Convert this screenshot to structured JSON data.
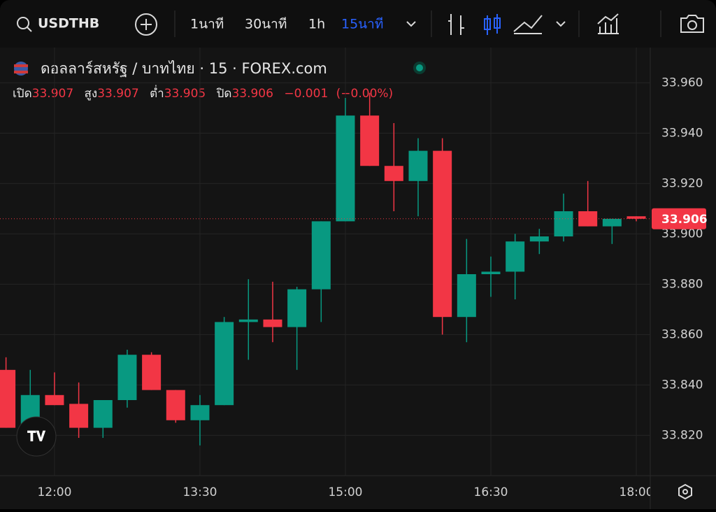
{
  "toolbar": {
    "symbol": "USDTHB",
    "intervals": [
      "1นาที",
      "30นาที",
      "1h",
      "15นาที"
    ],
    "active_interval": 3
  },
  "chart_data": {
    "type": "candlestick",
    "title": "ดอลลาร์สหรัฐ / บาทไทย · 15 · FOREX.com",
    "legend": {
      "open_label": "เปิด",
      "open": 33.907,
      "high_label": "สูง",
      "high": 33.907,
      "low_label": "ต่ำ",
      "low": 33.905,
      "close_label": "ปิด",
      "close": 33.906,
      "change": {
        "value": -0.001,
        "label": "−0.001"
      },
      "change_pct": {
        "value": -0.0,
        "label": "(−0.00%)"
      }
    },
    "categories": [
      null,
      null,
      "12:00",
      null,
      null,
      null,
      null,
      null,
      "13:30",
      null,
      null,
      null,
      null,
      null,
      "15:00",
      null,
      null,
      null,
      null,
      null,
      "16:30",
      null,
      null,
      null,
      null,
      null,
      "18:00"
    ],
    "series": [
      {
        "name": "open",
        "values": [
          33.846,
          33.823,
          33.836,
          33.8325,
          33.823,
          33.834,
          33.852,
          33.838,
          33.826,
          33.832,
          33.865,
          33.866,
          33.863,
          33.878,
          33.905,
          33.947,
          33.927,
          33.921,
          33.933,
          33.867,
          33.884,
          33.885,
          33.897,
          33.899,
          33.909,
          33.903,
          33.907
        ]
      },
      {
        "name": "high",
        "values": [
          33.851,
          33.846,
          33.845,
          33.841,
          33.834,
          33.854,
          33.853,
          33.838,
          33.836,
          33.867,
          33.882,
          33.881,
          33.879,
          33.905,
          33.954,
          33.956,
          33.944,
          33.938,
          33.938,
          33.898,
          33.891,
          33.9,
          33.902,
          33.916,
          33.921,
          33.906,
          33.907
        ]
      },
      {
        "name": "low",
        "values": [
          33.823,
          33.82,
          33.832,
          33.819,
          33.819,
          33.831,
          33.838,
          33.825,
          33.816,
          33.832,
          33.85,
          33.857,
          33.846,
          33.865,
          33.905,
          33.927,
          33.909,
          33.907,
          33.86,
          33.857,
          33.875,
          33.874,
          33.892,
          33.897,
          33.903,
          33.896,
          33.905
        ]
      },
      {
        "name": "close",
        "values": [
          33.823,
          33.836,
          33.832,
          33.823,
          33.834,
          33.852,
          33.838,
          33.826,
          33.832,
          33.865,
          33.866,
          33.863,
          33.878,
          33.905,
          33.947,
          33.927,
          33.921,
          33.933,
          33.867,
          33.884,
          33.885,
          33.897,
          33.899,
          33.909,
          33.903,
          33.906,
          33.906
        ]
      }
    ],
    "up_color": "#089981",
    "down_color": "#f23645",
    "last_price": 33.906,
    "ylim": [
      33.804,
      33.974
    ],
    "yticks": [
      {
        "value": 33.82,
        "label": "33.820"
      },
      {
        "value": 33.84,
        "label": "33.840"
      },
      {
        "value": 33.86,
        "label": "33.860"
      },
      {
        "value": 33.88,
        "label": "33.880"
      },
      {
        "value": 33.9,
        "label": "33.900"
      },
      {
        "value": 33.92,
        "label": "33.920"
      },
      {
        "value": 33.94,
        "label": "33.940"
      },
      {
        "value": 33.96,
        "label": "33.960"
      }
    ],
    "grid": true
  }
}
